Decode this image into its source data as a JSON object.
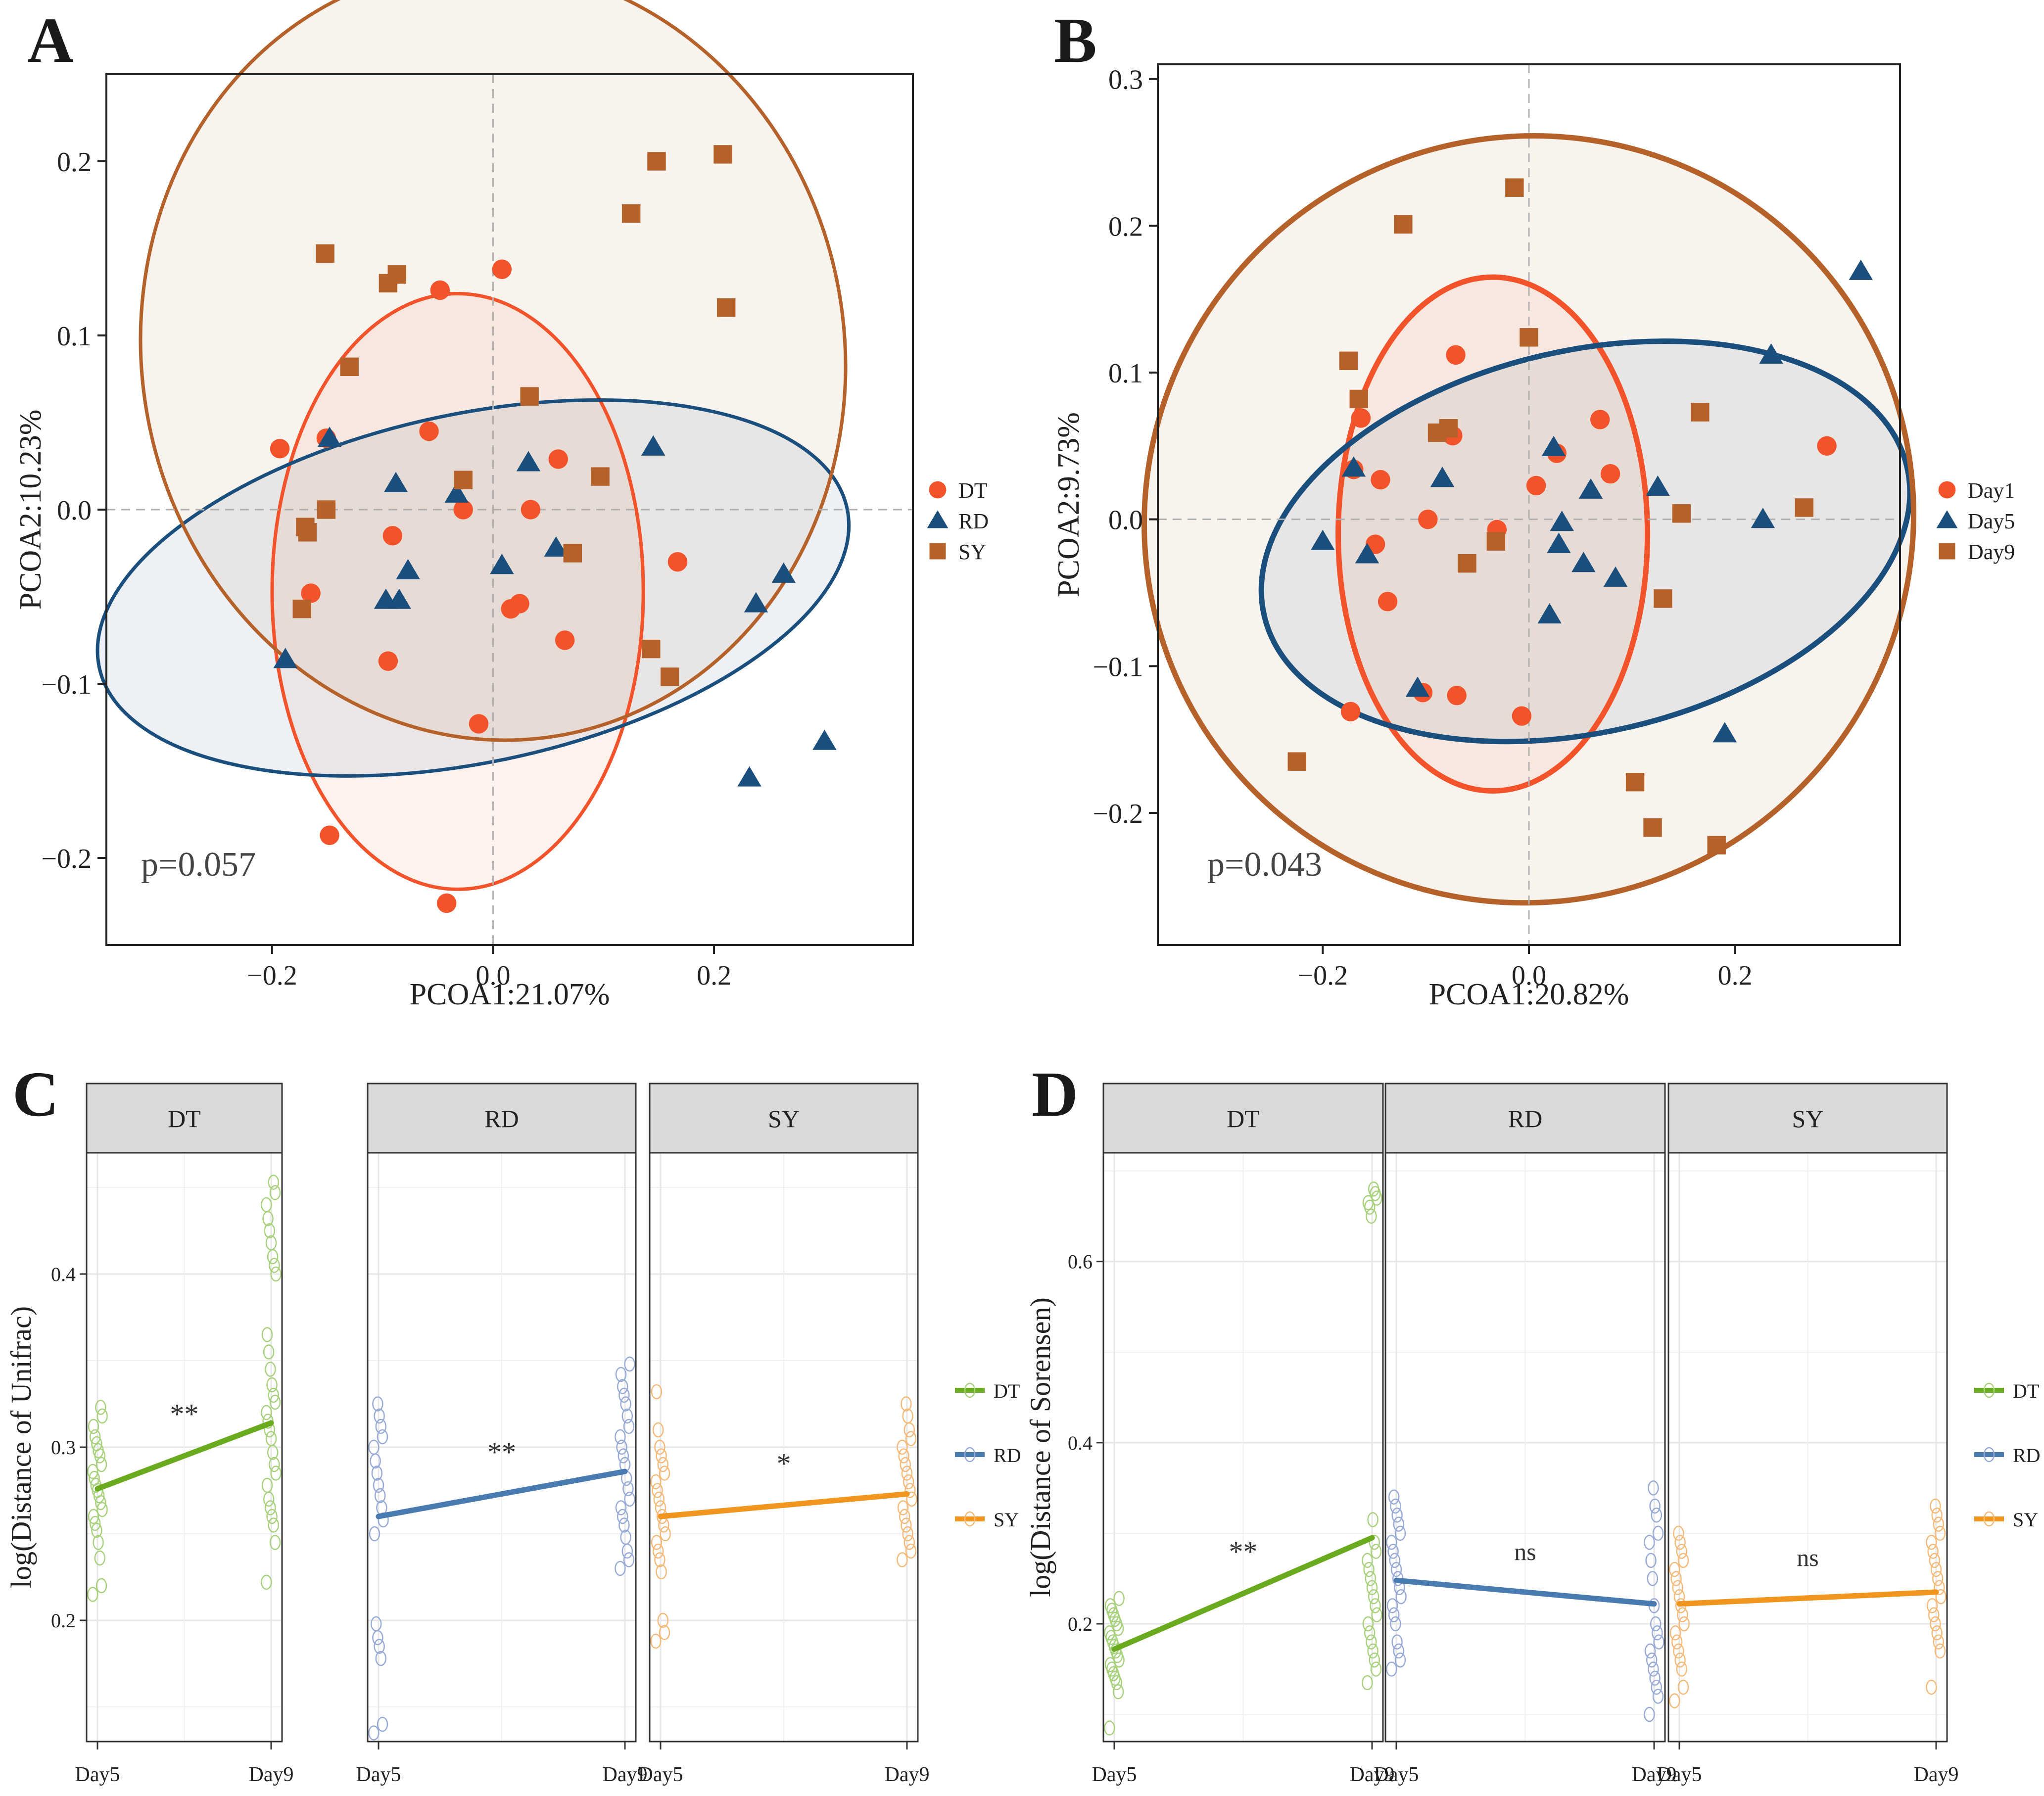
{
  "panels": [
    {
      "id": "A",
      "letter": "A",
      "type": "pcoa",
      "xlabel": "PCOA1:21.07%",
      "ylabel": "PCOA2:10.23%",
      "xlim": [
        -0.35,
        0.38
      ],
      "ylim": [
        -0.25,
        0.25
      ],
      "xticks": [
        -0.2,
        0.0,
        0.2
      ],
      "xtick_labels": [
        "−0.2",
        "0.0",
        "0.2"
      ],
      "yticks": [
        -0.2,
        -0.1,
        0.0,
        0.1,
        0.2
      ],
      "ytick_labels": [
        "−0.2",
        "−0.1",
        "0.0",
        "0.1",
        "0.2"
      ],
      "pvalue": "p=0.057",
      "groups": [
        {
          "name": "DT",
          "shape": "circle",
          "color": "#f2532a",
          "points": [
            [
              -0.193,
              0.035
            ],
            [
              -0.151,
              0.041
            ],
            [
              -0.165,
              -0.048
            ],
            [
              -0.091,
              -0.015
            ],
            [
              -0.095,
              -0.087
            ],
            [
              -0.058,
              0.045
            ],
            [
              -0.048,
              0.126
            ],
            [
              0.008,
              0.138
            ],
            [
              -0.027,
              0.0
            ],
            [
              0.059,
              0.029
            ],
            [
              0.034,
              0.0
            ],
            [
              0.016,
              -0.057
            ],
            [
              0.024,
              -0.054
            ],
            [
              0.065,
              -0.075
            ],
            [
              0.167,
              -0.03
            ],
            [
              -0.013,
              -0.123
            ],
            [
              -0.148,
              -0.187
            ],
            [
              -0.042,
              -0.226
            ]
          ],
          "ellipse": {
            "cx": -0.032,
            "cy": -0.047,
            "rx": 0.168,
            "ry": 0.171,
            "angle": 0
          }
        },
        {
          "name": "RD",
          "shape": "triangle",
          "color": "#1a4f7d",
          "points": [
            [
              -0.148,
              0.041
            ],
            [
              -0.088,
              0.015
            ],
            [
              -0.033,
              0.009
            ],
            [
              -0.097,
              -0.052
            ],
            [
              -0.085,
              -0.052
            ],
            [
              -0.077,
              -0.035
            ],
            [
              0.008,
              -0.032
            ],
            [
              0.032,
              0.027
            ],
            [
              0.057,
              -0.022
            ],
            [
              0.145,
              0.036
            ],
            [
              -0.188,
              -0.086
            ],
            [
              0.238,
              -0.054
            ],
            [
              0.263,
              -0.037
            ],
            [
              0.3,
              -0.133
            ],
            [
              0.232,
              -0.154
            ]
          ],
          "ellipse": {
            "cx": -0.018,
            "cy": -0.045,
            "rx": 0.346,
            "ry": 0.1,
            "angle": -12
          }
        },
        {
          "name": "SY",
          "shape": "square",
          "color": "#b5612a",
          "points": [
            [
              -0.152,
              0.147
            ],
            [
              -0.095,
              0.13
            ],
            [
              -0.087,
              0.135
            ],
            [
              -0.13,
              0.082
            ],
            [
              -0.151,
              0.0
            ],
            [
              -0.17,
              -0.01
            ],
            [
              -0.168,
              -0.013
            ],
            [
              -0.173,
              -0.057
            ],
            [
              -0.027,
              0.017
            ],
            [
              0.033,
              0.065
            ],
            [
              0.097,
              0.019
            ],
            [
              0.072,
              -0.025
            ],
            [
              0.125,
              0.17
            ],
            [
              0.148,
              0.2
            ],
            [
              0.208,
              0.204
            ],
            [
              0.211,
              0.116
            ],
            [
              0.143,
              -0.08
            ],
            [
              0.16,
              -0.096
            ]
          ],
          "ellipse": {
            "cx": 0.0,
            "cy": 0.09,
            "rx": 0.318,
            "ry": 0.223,
            "angle": -10
          }
        }
      ],
      "legend": [
        "DT",
        "RD",
        "SY"
      ]
    },
    {
      "id": "B",
      "letter": "B",
      "type": "pcoa",
      "xlabel": "PCOA1:20.82%",
      "ylabel": "PCOA2:9.73%",
      "xlim": [
        -0.36,
        0.36
      ],
      "ylim": [
        -0.29,
        0.31
      ],
      "xticks": [
        -0.2,
        0.0,
        0.2
      ],
      "xtick_labels": [
        "−0.2",
        "0.0",
        "0.2"
      ],
      "yticks": [
        -0.2,
        -0.1,
        0.0,
        0.1,
        0.2,
        0.3
      ],
      "ytick_labels": [
        "−0.2",
        "−0.1",
        "0.0",
        "0.1",
        "0.2",
        "0.3"
      ],
      "pvalue": "p=0.043",
      "groups": [
        {
          "name": "Day1",
          "shape": "circle",
          "color": "#f2532a",
          "points": [
            [
              -0.163,
              0.069
            ],
            [
              -0.17,
              0.034
            ],
            [
              -0.144,
              0.027
            ],
            [
              -0.149,
              -0.017
            ],
            [
              -0.137,
              -0.056
            ],
            [
              -0.098,
              0.0
            ],
            [
              -0.074,
              0.057
            ],
            [
              -0.071,
              0.112
            ],
            [
              -0.031,
              -0.007
            ],
            [
              0.007,
              0.023
            ],
            [
              0.027,
              0.045
            ],
            [
              0.069,
              0.068
            ],
            [
              0.079,
              0.031
            ],
            [
              -0.103,
              -0.118
            ],
            [
              -0.07,
              -0.12
            ],
            [
              -0.007,
              -0.134
            ],
            [
              -0.173,
              -0.131
            ],
            [
              0.289,
              0.05
            ]
          ],
          "ellipse": {
            "cx": -0.035,
            "cy": -0.01,
            "rx": 0.15,
            "ry": 0.175,
            "angle": 0
          }
        },
        {
          "name": "Day5",
          "shape": "triangle",
          "color": "#1a4f7d",
          "points": [
            [
              -0.2,
              -0.015
            ],
            [
              -0.17,
              0.035
            ],
            [
              -0.157,
              -0.024
            ],
            [
              -0.084,
              0.028
            ],
            [
              -0.108,
              -0.115
            ],
            [
              0.024,
              0.049
            ],
            [
              0.032,
              -0.002
            ],
            [
              0.029,
              -0.017
            ],
            [
              0.053,
              -0.03
            ],
            [
              0.06,
              0.02
            ],
            [
              0.084,
              -0.04
            ],
            [
              0.125,
              0.022
            ],
            [
              0.02,
              -0.065
            ],
            [
              0.227,
              0.0
            ],
            [
              0.235,
              0.112
            ],
            [
              0.19,
              -0.146
            ],
            [
              0.322,
              0.169
            ]
          ],
          "ellipse": {
            "cx": 0.055,
            "cy": -0.015,
            "rx": 0.32,
            "ry": 0.13,
            "angle": -13
          }
        },
        {
          "name": "Day9",
          "shape": "square",
          "color": "#b5612a",
          "points": [
            [
              -0.014,
              0.226
            ],
            [
              -0.122,
              0.201
            ],
            [
              -0.175,
              0.108
            ],
            [
              -0.165,
              0.082
            ],
            [
              -0.089,
              0.059
            ],
            [
              -0.078,
              0.062
            ],
            [
              0.0,
              0.124
            ],
            [
              -0.06,
              -0.03
            ],
            [
              -0.032,
              -0.015
            ],
            [
              0.13,
              -0.054
            ],
            [
              0.166,
              0.073
            ],
            [
              0.148,
              0.004
            ],
            [
              0.267,
              0.008
            ],
            [
              -0.225,
              -0.165
            ],
            [
              0.103,
              -0.179
            ],
            [
              0.12,
              -0.21
            ],
            [
              0.182,
              -0.222
            ]
          ],
          "ellipse": {
            "cx": 0.0,
            "cy": 0.0,
            "rx": 0.375,
            "ry": 0.26,
            "angle": -38
          }
        }
      ],
      "legend": [
        "Day1",
        "Day5",
        "Day9"
      ]
    },
    {
      "id": "C",
      "letter": "C",
      "type": "facet-line",
      "ylabel": "log(Distance of Unifrac)",
      "ylim": [
        0.13,
        0.47
      ],
      "yticks": [
        0.2,
        0.3,
        0.4
      ],
      "ytick_labels": [
        "0.2",
        "0.3",
        "0.4"
      ],
      "x_categories": [
        "Day5",
        "Day9"
      ],
      "facets": [
        {
          "name": "DT",
          "color": "#6aaa1e",
          "pointcolor": "#a8d17c",
          "mean": [
            0.276,
            0.314
          ],
          "sig": "**",
          "day5": [
            0.215,
            0.22,
            0.236,
            0.245,
            0.252,
            0.256,
            0.26,
            0.264,
            0.268,
            0.272,
            0.275,
            0.278,
            0.282,
            0.286,
            0.29,
            0.295,
            0.298,
            0.302,
            0.306,
            0.312,
            0.318,
            0.323
          ],
          "day9": [
            0.222,
            0.245,
            0.255,
            0.26,
            0.265,
            0.27,
            0.278,
            0.285,
            0.29,
            0.297,
            0.305,
            0.31,
            0.315,
            0.32,
            0.326,
            0.33,
            0.336,
            0.345,
            0.355,
            0.365,
            0.4,
            0.405,
            0.41,
            0.418,
            0.425,
            0.432,
            0.44,
            0.447,
            0.453
          ]
        },
        {
          "name": "RD",
          "color": "#4a7bb0",
          "pointcolor": "#98aad6",
          "mean": [
            0.26,
            0.286
          ],
          "sig": "**",
          "day5": [
            0.135,
            0.14,
            0.178,
            0.185,
            0.19,
            0.198,
            0.25,
            0.258,
            0.265,
            0.272,
            0.278,
            0.285,
            0.292,
            0.3,
            0.306,
            0.312,
            0.318,
            0.325
          ],
          "day9": [
            0.23,
            0.235,
            0.24,
            0.248,
            0.255,
            0.26,
            0.265,
            0.27,
            0.276,
            0.282,
            0.29,
            0.295,
            0.3,
            0.306,
            0.312,
            0.318,
            0.325,
            0.33,
            0.335,
            0.342,
            0.348
          ]
        },
        {
          "name": "SY",
          "color": "#f0961e",
          "pointcolor": "#f5b978",
          "mean": [
            0.26,
            0.273
          ],
          "sig": "*",
          "day5": [
            0.188,
            0.193,
            0.2,
            0.228,
            0.235,
            0.24,
            0.245,
            0.25,
            0.255,
            0.26,
            0.265,
            0.27,
            0.275,
            0.28,
            0.285,
            0.29,
            0.295,
            0.3,
            0.31,
            0.332
          ],
          "day9": [
            0.235,
            0.24,
            0.245,
            0.25,
            0.255,
            0.26,
            0.265,
            0.27,
            0.275,
            0.28,
            0.285,
            0.29,
            0.295,
            0.3,
            0.305,
            0.31,
            0.318,
            0.325
          ]
        }
      ],
      "legend": [
        "DT",
        "RD",
        "SY"
      ]
    },
    {
      "id": "D",
      "letter": "D",
      "type": "facet-line",
      "ylabel": "log(Distance of Sorensen)",
      "ylim": [
        0.07,
        0.72
      ],
      "yticks": [
        0.2,
        0.4,
        0.6
      ],
      "ytick_labels": [
        "0.2",
        "0.4",
        "0.6"
      ],
      "x_categories": [
        "Day5",
        "Day9"
      ],
      "facets": [
        {
          "name": "DT",
          "color": "#6aaa1e",
          "pointcolor": "#a8d17c",
          "mean": [
            0.172,
            0.295
          ],
          "sig": "**",
          "day5": [
            0.085,
            0.125,
            0.135,
            0.14,
            0.145,
            0.15,
            0.155,
            0.16,
            0.165,
            0.17,
            0.175,
            0.18,
            0.185,
            0.19,
            0.195,
            0.2,
            0.205,
            0.21,
            0.215,
            0.22,
            0.228
          ],
          "day9": [
            0.135,
            0.15,
            0.16,
            0.17,
            0.18,
            0.19,
            0.2,
            0.21,
            0.22,
            0.23,
            0.24,
            0.25,
            0.26,
            0.27,
            0.28,
            0.29,
            0.315,
            0.65,
            0.66,
            0.665,
            0.67,
            0.675,
            0.68
          ]
        },
        {
          "name": "RD",
          "color": "#4a7bb0",
          "pointcolor": "#98aad6",
          "mean": [
            0.248,
            0.222
          ],
          "sig": "ns",
          "day5": [
            0.15,
            0.16,
            0.17,
            0.18,
            0.2,
            0.21,
            0.22,
            0.23,
            0.24,
            0.25,
            0.26,
            0.27,
            0.28,
            0.29,
            0.3,
            0.31,
            0.32,
            0.33,
            0.34
          ],
          "day9": [
            0.1,
            0.12,
            0.13,
            0.14,
            0.15,
            0.16,
            0.17,
            0.18,
            0.19,
            0.2,
            0.22,
            0.25,
            0.27,
            0.29,
            0.3,
            0.32,
            0.33,
            0.35
          ]
        },
        {
          "name": "SY",
          "color": "#f0961e",
          "pointcolor": "#f5b978",
          "mean": [
            0.222,
            0.235
          ],
          "sig": "ns",
          "day5": [
            0.115,
            0.13,
            0.15,
            0.16,
            0.17,
            0.18,
            0.19,
            0.2,
            0.21,
            0.22,
            0.23,
            0.24,
            0.25,
            0.26,
            0.27,
            0.28,
            0.29,
            0.3
          ],
          "day9": [
            0.13,
            0.17,
            0.18,
            0.19,
            0.2,
            0.21,
            0.22,
            0.23,
            0.24,
            0.25,
            0.26,
            0.27,
            0.28,
            0.29,
            0.3,
            0.31,
            0.32,
            0.33
          ]
        }
      ],
      "legend": [
        "DT",
        "RD",
        "SY"
      ]
    }
  ],
  "chart_data": [
    {
      "type": "scatter",
      "title": "A",
      "xlabel": "PCOA1:21.07%",
      "ylabel": "PCOA2:10.23%",
      "xlim": [
        -0.35,
        0.38
      ],
      "ylim": [
        -0.25,
        0.25
      ],
      "annotation": "p=0.057",
      "series": [
        "DT",
        "RD",
        "SY"
      ]
    },
    {
      "type": "scatter",
      "title": "B",
      "xlabel": "PCOA1:20.82%",
      "ylabel": "PCOA2:9.73%",
      "xlim": [
        -0.36,
        0.36
      ],
      "ylim": [
        -0.29,
        0.31
      ],
      "annotation": "p=0.043",
      "series": [
        "Day1",
        "Day5",
        "Day9"
      ]
    },
    {
      "type": "line",
      "title": "C",
      "xlabel": "",
      "ylabel": "log(Distance of Unifrac)",
      "categories": [
        "Day5",
        "Day9"
      ],
      "series": [
        {
          "name": "DT",
          "values": [
            0.276,
            0.314
          ]
        },
        {
          "name": "RD",
          "values": [
            0.26,
            0.286
          ]
        },
        {
          "name": "SY",
          "values": [
            0.26,
            0.273
          ]
        }
      ]
    },
    {
      "type": "line",
      "title": "D",
      "xlabel": "",
      "ylabel": "log(Distance of Sorensen)",
      "categories": [
        "Day5",
        "Day9"
      ],
      "series": [
        {
          "name": "DT",
          "values": [
            0.172,
            0.295
          ]
        },
        {
          "name": "RD",
          "values": [
            0.248,
            0.222
          ]
        },
        {
          "name": "SY",
          "values": [
            0.222,
            0.235
          ]
        }
      ]
    }
  ]
}
